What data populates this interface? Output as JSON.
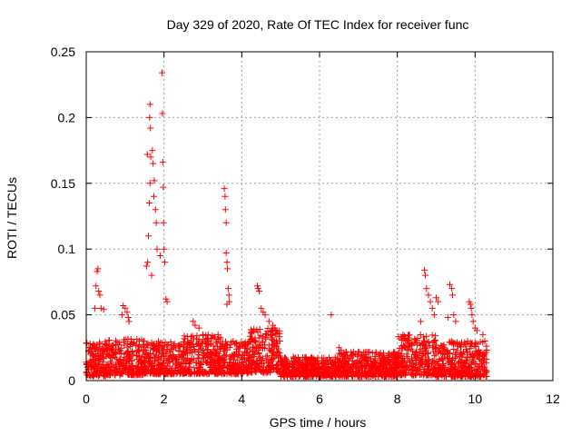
{
  "chart_data": {
    "type": "scatter",
    "title": "Day 329 of 2020, Rate Of TEC Index for receiver func",
    "xlabel": "GPS time / hours",
    "ylabel": "ROTI / TECUs",
    "xlim": [
      0,
      12
    ],
    "ylim": [
      0,
      0.25
    ],
    "x_ticks": [
      "0",
      "2",
      "4",
      "6",
      "8",
      "10",
      "12"
    ],
    "y_ticks": [
      "0",
      "0.05",
      "0.1",
      "0.15",
      "0.2",
      "0.25"
    ],
    "x_tick_values": [
      0,
      2,
      4,
      6,
      8,
      10,
      12
    ],
    "y_tick_values": [
      0,
      0.05,
      0.1,
      0.15,
      0.2,
      0.25
    ],
    "grid": true,
    "marker": "+",
    "series_color": "#ff0000",
    "series": [
      {
        "name": "ROTI",
        "background_band": {
          "comment_ranges": "hour ranges with typical ROTI band (min,max)",
          "segments": [
            {
              "x": [
                0.0,
                0.5
              ],
              "y": [
                0.003,
                0.03
              ]
            },
            {
              "x": [
                0.5,
                1.5
              ],
              "y": [
                0.004,
                0.032
              ]
            },
            {
              "x": [
                1.5,
                2.5
              ],
              "y": [
                0.005,
                0.03
              ]
            },
            {
              "x": [
                2.5,
                3.5
              ],
              "y": [
                0.005,
                0.035
              ]
            },
            {
              "x": [
                3.5,
                4.2
              ],
              "y": [
                0.005,
                0.03
              ]
            },
            {
              "x": [
                4.2,
                5.0
              ],
              "y": [
                0.006,
                0.04
              ]
            },
            {
              "x": [
                5.0,
                6.5
              ],
              "y": [
                0.003,
                0.018
              ]
            },
            {
              "x": [
                6.5,
                8.0
              ],
              "y": [
                0.003,
                0.022
              ]
            },
            {
              "x": [
                8.0,
                9.0
              ],
              "y": [
                0.004,
                0.035
              ]
            },
            {
              "x": [
                9.0,
                10.3
              ],
              "y": [
                0.003,
                0.03
              ]
            }
          ]
        },
        "points": [
          [
            0.25,
            0.072
          ],
          [
            0.28,
            0.083
          ],
          [
            0.3,
            0.085
          ],
          [
            0.32,
            0.068
          ],
          [
            0.35,
            0.065
          ],
          [
            0.38,
            0.055
          ],
          [
            0.45,
            0.054
          ],
          [
            0.22,
            0.055
          ],
          [
            0.95,
            0.057
          ],
          [
            1.0,
            0.055
          ],
          [
            1.05,
            0.052
          ],
          [
            1.08,
            0.048
          ],
          [
            1.1,
            0.045
          ],
          [
            0.92,
            0.05
          ],
          [
            1.55,
            0.087
          ],
          [
            1.58,
            0.09
          ],
          [
            1.6,
            0.11
          ],
          [
            1.62,
            0.135
          ],
          [
            1.64,
            0.15
          ],
          [
            1.57,
            0.172
          ],
          [
            1.63,
            0.2
          ],
          [
            1.64,
            0.21
          ],
          [
            1.65,
            0.192
          ],
          [
            1.66,
            0.17
          ],
          [
            1.7,
            0.175
          ],
          [
            1.72,
            0.165
          ],
          [
            1.74,
            0.14
          ],
          [
            1.75,
            0.152
          ],
          [
            1.78,
            0.13
          ],
          [
            1.8,
            0.12
          ],
          [
            1.82,
            0.1
          ],
          [
            1.68,
            0.08
          ],
          [
            1.95,
            0.234
          ],
          [
            1.96,
            0.203
          ],
          [
            1.97,
            0.166
          ],
          [
            1.98,
            0.147
          ],
          [
            1.99,
            0.12
          ],
          [
            2.0,
            0.1
          ],
          [
            2.02,
            0.09
          ],
          [
            2.05,
            0.062
          ],
          [
            2.08,
            0.06
          ],
          [
            1.9,
            0.095
          ],
          [
            2.75,
            0.045
          ],
          [
            2.8,
            0.042
          ],
          [
            2.9,
            0.04
          ],
          [
            3.0,
            0.035
          ],
          [
            3.55,
            0.146
          ],
          [
            3.57,
            0.14
          ],
          [
            3.58,
            0.13
          ],
          [
            3.6,
            0.12
          ],
          [
            3.6,
            0.097
          ],
          [
            3.62,
            0.09
          ],
          [
            3.63,
            0.085
          ],
          [
            3.65,
            0.07
          ],
          [
            3.67,
            0.065
          ],
          [
            3.68,
            0.06
          ],
          [
            3.62,
            0.058
          ],
          [
            4.4,
            0.072
          ],
          [
            4.42,
            0.07
          ],
          [
            4.45,
            0.068
          ],
          [
            4.5,
            0.055
          ],
          [
            4.55,
            0.052
          ],
          [
            4.6,
            0.05
          ],
          [
            4.7,
            0.045
          ],
          [
            4.8,
            0.042
          ],
          [
            4.85,
            0.04
          ],
          [
            6.3,
            0.05
          ],
          [
            6.5,
            0.025
          ],
          [
            6.55,
            0.023
          ],
          [
            8.7,
            0.084
          ],
          [
            8.72,
            0.08
          ],
          [
            8.75,
            0.07
          ],
          [
            8.8,
            0.065
          ],
          [
            8.85,
            0.06
          ],
          [
            8.9,
            0.055
          ],
          [
            8.95,
            0.05
          ],
          [
            9.0,
            0.063
          ],
          [
            9.05,
            0.06
          ],
          [
            8.6,
            0.045
          ],
          [
            9.35,
            0.073
          ],
          [
            9.4,
            0.07
          ],
          [
            9.42,
            0.065
          ],
          [
            9.45,
            0.05
          ],
          [
            9.5,
            0.045
          ],
          [
            9.3,
            0.048
          ],
          [
            9.85,
            0.06
          ],
          [
            9.88,
            0.058
          ],
          [
            9.9,
            0.055
          ],
          [
            9.92,
            0.05
          ],
          [
            9.95,
            0.045
          ],
          [
            10.0,
            0.04
          ],
          [
            10.05,
            0.038
          ],
          [
            10.2,
            0.035
          ],
          [
            10.25,
            0.03
          ],
          [
            10.3,
            0.007
          ],
          [
            10.28,
            0.006
          ],
          [
            10.25,
            0.02
          ]
        ]
      }
    ]
  }
}
